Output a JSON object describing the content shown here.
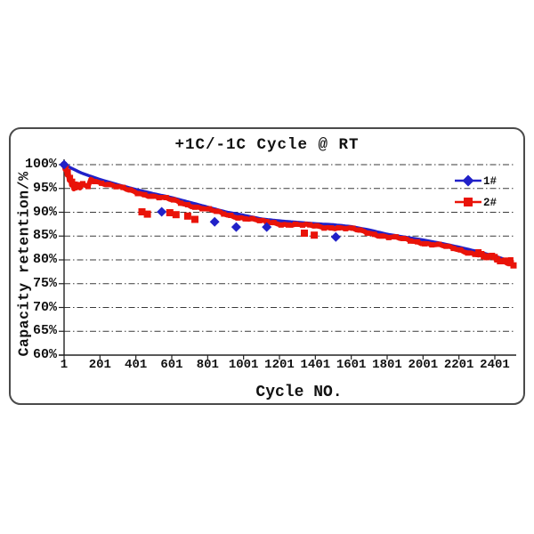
{
  "frame": {
    "border_color": "#4a4a4a",
    "background": "#ffffff"
  },
  "chart_data": {
    "type": "line",
    "title": "+1C/-1C Cycle @ RT",
    "xlabel": "Cycle NO.",
    "ylabel": "Capacity retention/%",
    "x_ticks": [
      "1",
      "201",
      "401",
      "601",
      "801",
      "1001",
      "1201",
      "1401",
      "1601",
      "1801",
      "2001",
      "2201",
      "2401"
    ],
    "y_ticks": [
      "100%",
      "95%",
      "90%",
      "85%",
      "80%",
      "75%",
      "70%",
      "65%",
      "60%"
    ],
    "xlim": [
      1,
      2505
    ],
    "ylim": [
      60,
      100
    ],
    "grid": "horizontal dash-dot lines every 5%",
    "legend_position": "inside upper right",
    "axis_color": "#222222",
    "grid_color": "#3a3a3a",
    "series": [
      {
        "name": "1#",
        "color": "#2121C8",
        "marker": "diamond",
        "points": [
          [
            1,
            100
          ],
          [
            100,
            98.2
          ],
          [
            200,
            96.9
          ],
          [
            300,
            95.8
          ],
          [
            400,
            94.8
          ],
          [
            500,
            93.9
          ],
          [
            600,
            93.1
          ],
          [
            700,
            92.1
          ],
          [
            800,
            91.1
          ],
          [
            900,
            90.1
          ],
          [
            1000,
            89.4
          ],
          [
            1100,
            88.6
          ],
          [
            1200,
            88.2
          ],
          [
            1300,
            87.9
          ],
          [
            1400,
            87.6
          ],
          [
            1500,
            87.4
          ],
          [
            1600,
            87.0
          ],
          [
            1700,
            86.3
          ],
          [
            1800,
            85.4
          ],
          [
            1900,
            84.8
          ],
          [
            2000,
            84.2
          ],
          [
            2100,
            83.5
          ],
          [
            2200,
            82.7
          ],
          [
            2300,
            81.8
          ],
          [
            2400,
            80.8
          ],
          [
            2505,
            79.5
          ]
        ],
        "outlier_points": [
          [
            545,
            90.1
          ],
          [
            840,
            88.0
          ],
          [
            960,
            86.9
          ],
          [
            1130,
            86.9
          ],
          [
            1515,
            84.8
          ]
        ]
      },
      {
        "name": "2#",
        "color": "#E91309",
        "marker": "square",
        "band_offset": -0.55,
        "early_points": [
          [
            1,
            100
          ],
          [
            6,
            99.0
          ],
          [
            12,
            99.4
          ],
          [
            18,
            97.8
          ],
          [
            24,
            98.5
          ],
          [
            30,
            96.7
          ],
          [
            36,
            97.3
          ],
          [
            42,
            95.7
          ],
          [
            48,
            96.5
          ],
          [
            55,
            94.9
          ],
          [
            62,
            95.9
          ],
          [
            70,
            95.1
          ],
          [
            80,
            95.8
          ],
          [
            90,
            95.1
          ],
          [
            105,
            96.0
          ],
          [
            120,
            95.6
          ],
          [
            135,
            95.4
          ]
        ],
        "outlier_points": [
          [
            435,
            90.1
          ],
          [
            465,
            89.6
          ],
          [
            590,
            89.9
          ],
          [
            625,
            89.5
          ],
          [
            690,
            89.2
          ],
          [
            730,
            88.5
          ],
          [
            1340,
            85.6
          ],
          [
            1395,
            85.2
          ]
        ],
        "end_value": [
          2505,
          80.0
        ]
      }
    ]
  }
}
